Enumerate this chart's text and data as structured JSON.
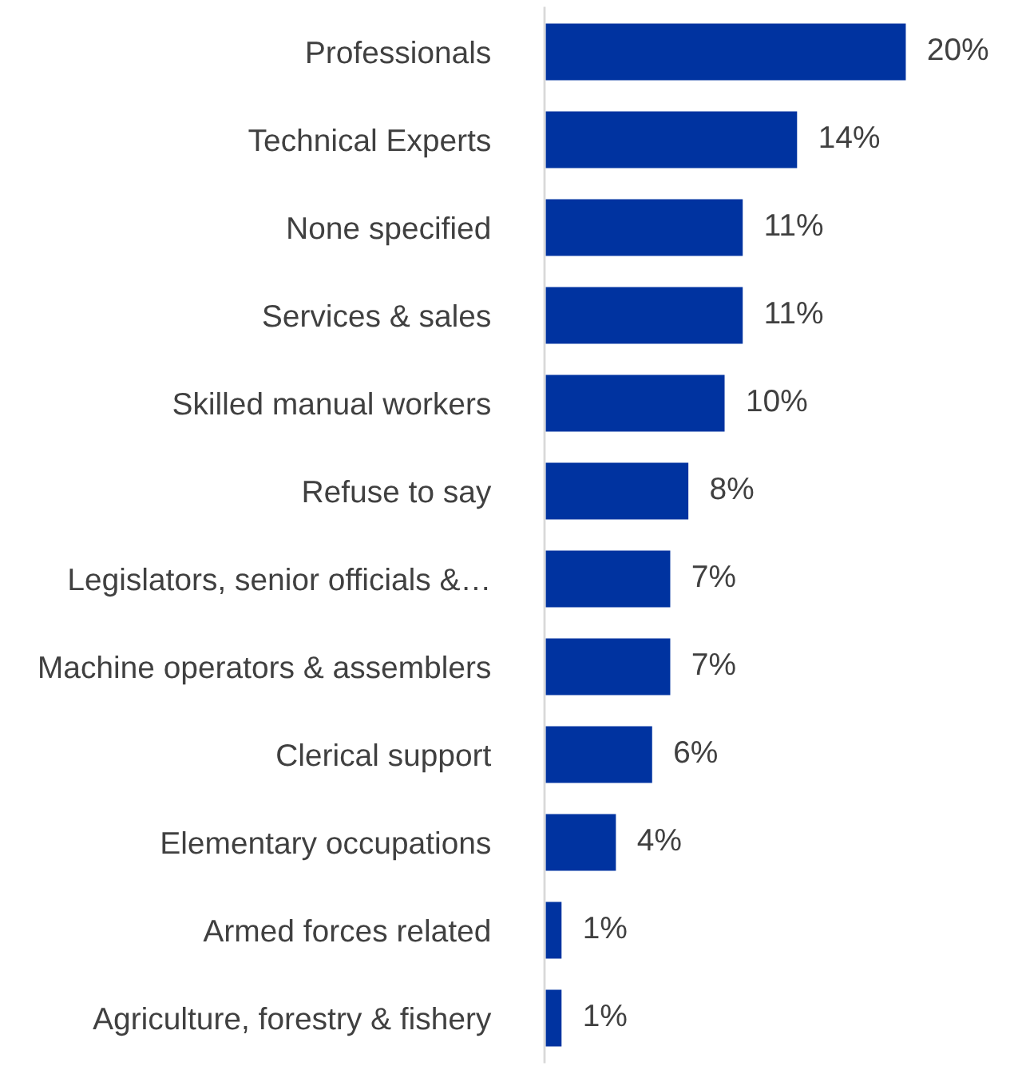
{
  "chart_data": {
    "type": "bar",
    "orientation": "horizontal",
    "categories": [
      "Professionals",
      "Technical Experts",
      "None specified",
      "Services & sales",
      "Skilled manual workers",
      "Refuse to say",
      "Legislators, senior officials &…",
      "Machine operators & assemblers",
      "Clerical support",
      "Elementary occupations",
      "Armed forces related",
      "Agriculture, forestry & fishery"
    ],
    "values": [
      20,
      14,
      11,
      11,
      10,
      8,
      7,
      7,
      6,
      4,
      1,
      1
    ],
    "value_labels": [
      "20%",
      "14%",
      "11%",
      "11%",
      "10%",
      "8%",
      "7%",
      "7%",
      "6%",
      "4%",
      "1%",
      "1%"
    ],
    "color": "#0033a0"
  }
}
